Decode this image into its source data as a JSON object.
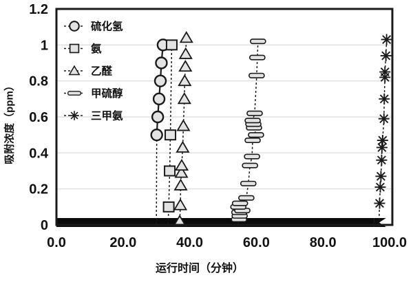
{
  "chart_data": {
    "type": "scatter",
    "xlabel": "运行时间（分钟）",
    "ylabel": "吸附浓度（ppm）",
    "xlim": [
      0,
      100
    ],
    "ylim": [
      0,
      1.2
    ],
    "x_tick_labels": [
      "0.0",
      "20.0",
      "40.0",
      "60.0",
      "80.0",
      "100.0"
    ],
    "x_tick_values": [
      0,
      20,
      40,
      60,
      80,
      100
    ],
    "y_tick_labels": [
      "0",
      "0.2",
      "0.4",
      "0.6",
      "0.8",
      "1",
      "1.2"
    ],
    "y_tick_values": [
      0,
      0.2,
      0.4,
      0.6,
      0.8,
      1,
      1.2
    ],
    "grid": "horizontal",
    "legend_position": "top-left-inside",
    "colors": {
      "stroke": "#1a1a1a",
      "marker_fill": "#e3e3e3",
      "grid": "#d9d9d9",
      "band": "#0a0a0a",
      "background": "#ffffff"
    },
    "zero_band": {
      "x_start": 0,
      "x_end": 97.5,
      "note": "dense overlapping data points at 0 ppm along the x-axis"
    },
    "series": [
      {
        "id": "hydrogen-sulfide",
        "name": "硫化氢",
        "marker": "circle",
        "line": "solid",
        "drop_x": 30.0,
        "points": [
          [
            30.1,
            0.5
          ],
          [
            30.4,
            0.6
          ],
          [
            30.8,
            0.7
          ],
          [
            31.2,
            0.8
          ],
          [
            31.5,
            0.9
          ],
          [
            32.0,
            1.0
          ]
        ]
      },
      {
        "id": "ammonia",
        "name": "氨",
        "marker": "square",
        "line": "dashed",
        "drop_x": 33.5,
        "points": [
          [
            33.7,
            0.1
          ],
          [
            34.0,
            0.3
          ],
          [
            34.2,
            0.5
          ],
          [
            34.6,
            1.0
          ]
        ]
      },
      {
        "id": "acetaldehyde",
        "name": "乙醛",
        "marker": "triangle",
        "line": "dashed",
        "drop_x": 36.9,
        "points": [
          [
            37.0,
            0.02
          ],
          [
            37.2,
            0.11
          ],
          [
            37.3,
            0.22
          ],
          [
            37.5,
            0.29
          ],
          [
            37.6,
            0.33
          ],
          [
            37.9,
            0.43
          ],
          [
            38.1,
            0.55
          ],
          [
            38.4,
            0.7
          ],
          [
            38.5,
            0.8
          ],
          [
            38.7,
            0.88
          ],
          [
            38.8,
            0.95
          ],
          [
            39.0,
            1.04
          ]
        ]
      },
      {
        "id": "methyl-mercaptan",
        "name": "甲硫醇",
        "marker": "hbar",
        "line": "dashed",
        "drop_x": 54.5,
        "points": [
          [
            54.8,
            0.03
          ],
          [
            55.0,
            0.05
          ],
          [
            54.9,
            0.07
          ],
          [
            55.8,
            0.08
          ],
          [
            54.6,
            0.1
          ],
          [
            55.1,
            0.12
          ],
          [
            57.0,
            0.15
          ],
          [
            57.6,
            0.23
          ],
          [
            58.1,
            0.33
          ],
          [
            58.7,
            0.38
          ],
          [
            58.9,
            0.47
          ],
          [
            59.9,
            0.5
          ],
          [
            59.3,
            0.54
          ],
          [
            59.1,
            0.56
          ],
          [
            58.9,
            0.58
          ],
          [
            59.5,
            0.62
          ],
          [
            60.1,
            0.83
          ],
          [
            60.3,
            0.93
          ],
          [
            60.5,
            1.02
          ]
        ]
      },
      {
        "id": "trimethylamine",
        "name": "三甲氨",
        "marker": "asterisk",
        "line": "dashed",
        "drop_x": 96.8,
        "points": [
          [
            97.0,
            0.12
          ],
          [
            97.2,
            0.21
          ],
          [
            97.4,
            0.27
          ],
          [
            97.6,
            0.36
          ],
          [
            97.7,
            0.43
          ],
          [
            97.9,
            0.47
          ],
          [
            98.3,
            0.59
          ],
          [
            98.4,
            0.7
          ],
          [
            98.6,
            0.82
          ],
          [
            98.6,
            0.85
          ],
          [
            98.9,
            0.94
          ],
          [
            99.1,
            1.03
          ]
        ]
      }
    ]
  }
}
